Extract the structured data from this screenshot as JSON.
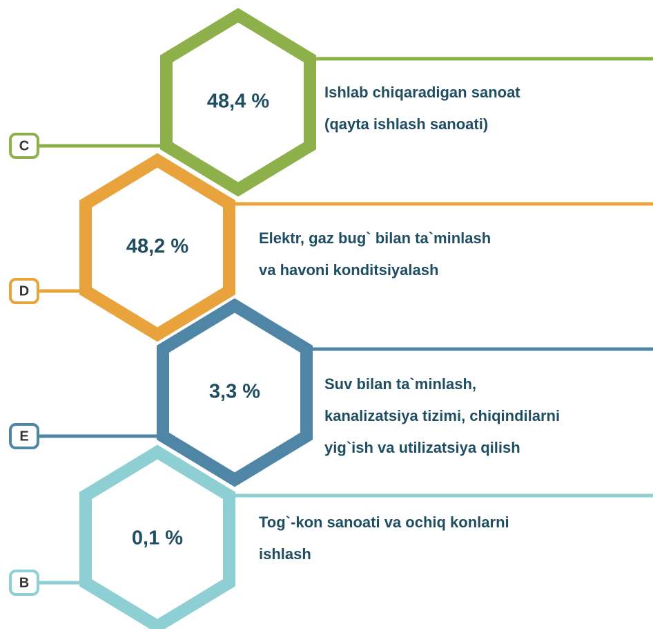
{
  "items": [
    {
      "code": "C",
      "value_label": "48,4 %",
      "lines": [
        "Ishlab chiqaradigan sanoat",
        "(qayta ishlash sanoati)"
      ],
      "color": "#8db04a"
    },
    {
      "code": "D",
      "value_label": "48,2 %",
      "lines": [
        "Elektr, gaz bug` bilan ta`minlash",
        "va havoni konditsiyalash"
      ],
      "color": "#e8a33d"
    },
    {
      "code": "E",
      "value_label": "3,3 %",
      "lines": [
        "Suv bilan ta`minlash,",
        "kanalizatsiya tizimi, chiqindilarni",
        "yig`ish va utilizatsiya qilish"
      ],
      "color": "#4f86a6"
    },
    {
      "code": "B",
      "value_label": "0,1 %",
      "lines": [
        "Tog`-kon sanoati va ochiq konlarni",
        "ishlash"
      ],
      "color": "#8ecfd4"
    }
  ]
}
